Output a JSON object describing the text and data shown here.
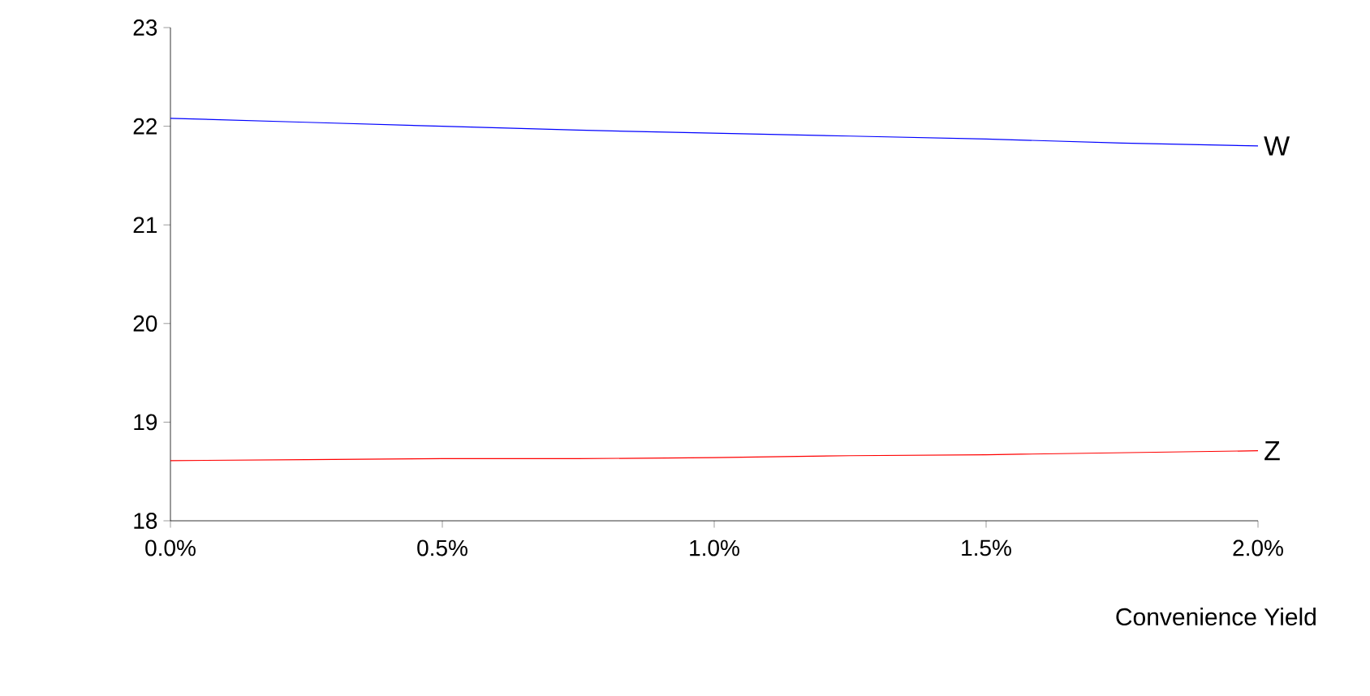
{
  "chart_data": {
    "type": "line",
    "xlabel": "Convenience Yield",
    "x": [
      0,
      0.25,
      0.5,
      0.75,
      1,
      1.25,
      1.5,
      1.75,
      2
    ],
    "series": [
      {
        "name": "W",
        "color": "#0000ff",
        "values": [
          22.08,
          22.04,
          22.0,
          21.96,
          21.93,
          21.9,
          21.87,
          21.83,
          21.8
        ]
      },
      {
        "name": "Z",
        "color": "#ff0000",
        "values": [
          18.61,
          18.62,
          18.63,
          18.63,
          18.64,
          18.66,
          18.67,
          18.69,
          18.71
        ]
      }
    ],
    "xlim": [
      0,
      2
    ],
    "ylim": [
      18,
      23
    ],
    "xticks": [
      {
        "value": 0,
        "label": "0.0%"
      },
      {
        "value": 0.5,
        "label": "0.5%"
      },
      {
        "value": 1,
        "label": "1.0%"
      },
      {
        "value": 1.5,
        "label": "1.5%"
      },
      {
        "value": 2,
        "label": "2.0%"
      }
    ],
    "yticks": [
      18,
      19,
      20,
      21,
      22,
      23
    ],
    "grid": false,
    "legend": false,
    "marker": "none",
    "line_style": "solid"
  }
}
